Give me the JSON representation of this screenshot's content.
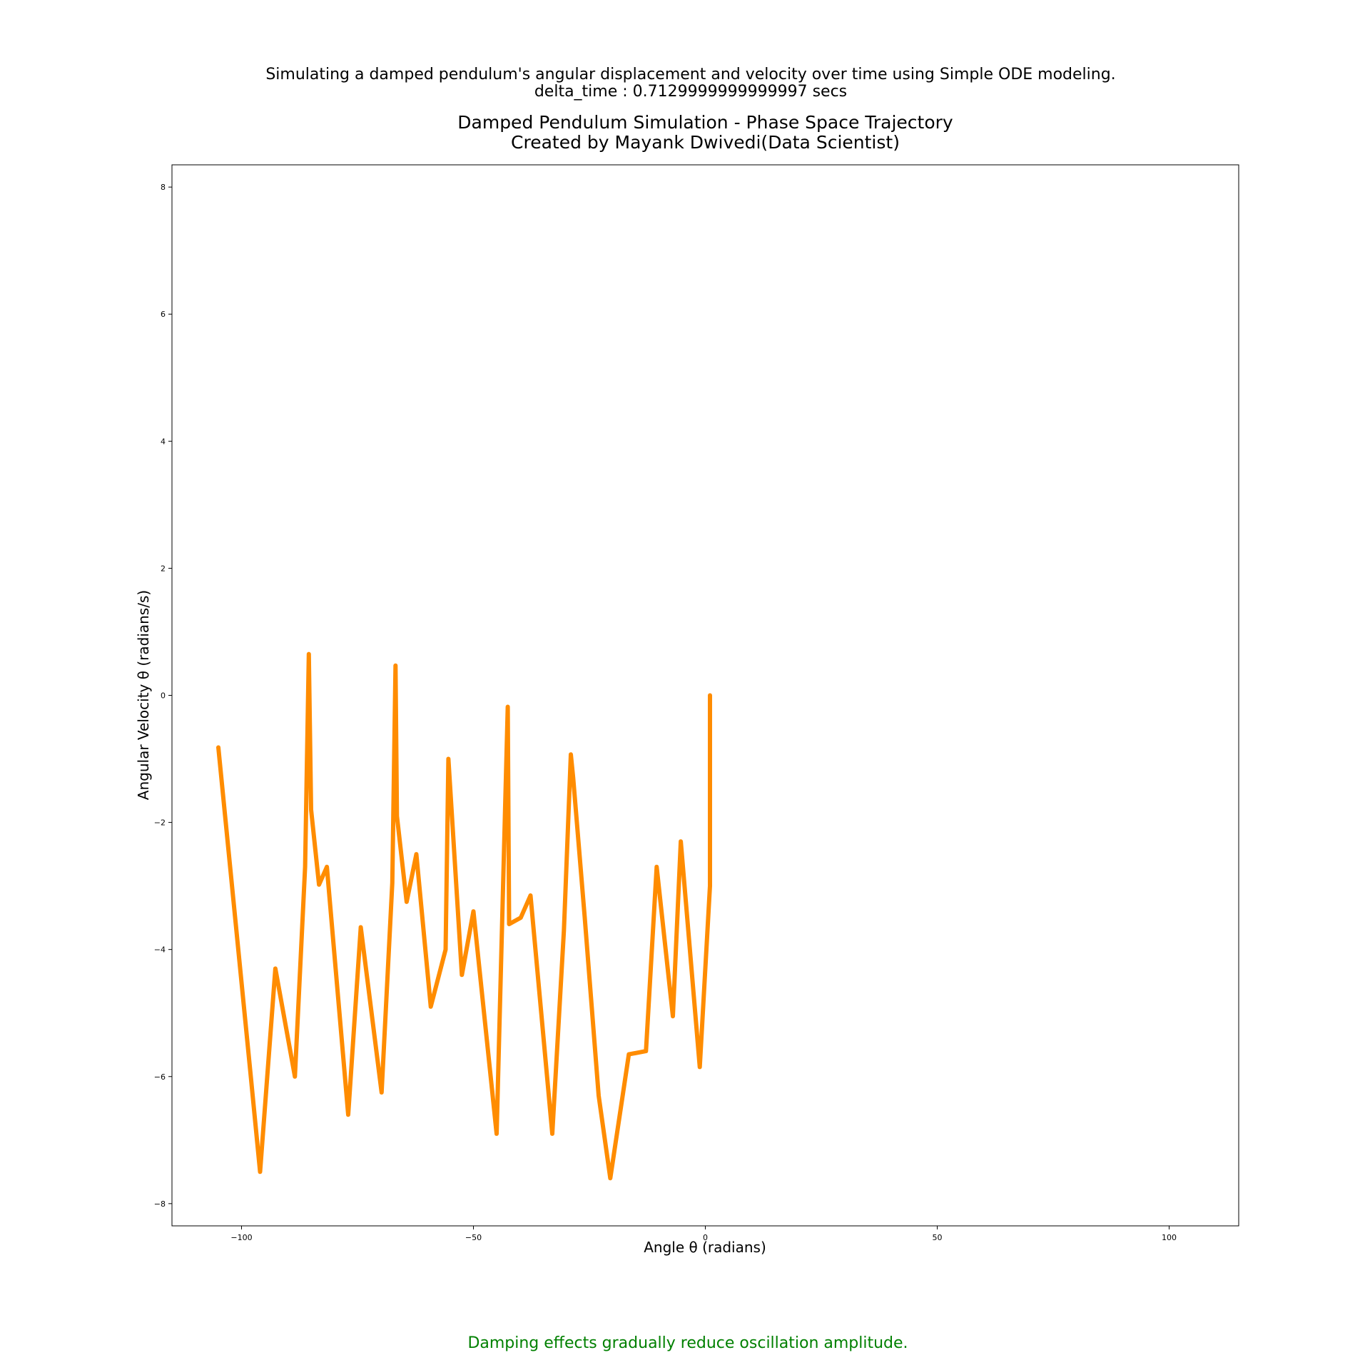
{
  "figure": {
    "suptitle_line1": "Simulating a damped pendulum's angular displacement and velocity over time using Simple ODE modeling.",
    "suptitle_line2": "delta_time : 0.7129999999999997 secs",
    "footnote": "Damping effects gradually reduce oscillation amplitude.",
    "footnote_color": "#008000"
  },
  "chart_data": {
    "type": "line",
    "title": "Damped Pendulum Simulation - Phase Space Trajectory",
    "subtitle": "Created by Mayank Dwivedi(Data Scientist)",
    "xlabel": "Angle θ (radians)",
    "ylabel": "Angular Velocity θ (radians/s)",
    "xlim": [
      -115,
      115
    ],
    "ylim": [
      -8.35,
      8.35
    ],
    "xticks": [
      -100,
      -50,
      0,
      50,
      100
    ],
    "xtick_labels": [
      "−100",
      "−50",
      "0",
      "50",
      "100"
    ],
    "yticks": [
      -8,
      -6,
      -4,
      -2,
      0,
      2,
      4,
      6,
      8
    ],
    "ytick_labels": [
      "−8",
      "−6",
      "−4",
      "−2",
      "0",
      "2",
      "4",
      "6",
      "8"
    ],
    "grid": false,
    "line_color": "#ff8c00",
    "series": [
      {
        "x": [
          1,
          1,
          1,
          -1.2,
          -5.3,
          -7,
          -10.5,
          -12.8,
          -16.5,
          -20.5,
          -23,
          -26,
          -28.5,
          -29,
          -30.5,
          -33,
          -37.7,
          -39.8,
          -42.3,
          -42.6,
          -45,
          -50,
          -52.5,
          -55.4,
          -56,
          -59.2,
          -62.3,
          -64.4,
          -66.5,
          -66.8,
          -67.5,
          -69.8,
          -74.3,
          -77,
          -81.6,
          -83.3,
          -85,
          -85.5,
          -86.3,
          -88.5,
          -92.7,
          -96,
          -98,
          -105
        ],
        "y": [
          0,
          -1.2,
          -3.0,
          -5.85,
          -2.3,
          -5.05,
          -2.7,
          -5.6,
          -5.65,
          -7.6,
          -6.3,
          -3.5,
          -1.3,
          -0.93,
          -3.7,
          -6.9,
          -3.15,
          -3.5,
          -3.6,
          -0.18,
          -6.9,
          -3.4,
          -4.4,
          -1.0,
          -4.0,
          -4.9,
          -2.5,
          -3.25,
          -1.9,
          0.47,
          -2.95,
          -6.25,
          -3.65,
          -6.6,
          -2.7,
          -2.98,
          -1.8,
          0.65,
          -2.7,
          -6.0,
          -4.3,
          -7.5,
          -6.0,
          -0.82
        ]
      }
    ]
  }
}
